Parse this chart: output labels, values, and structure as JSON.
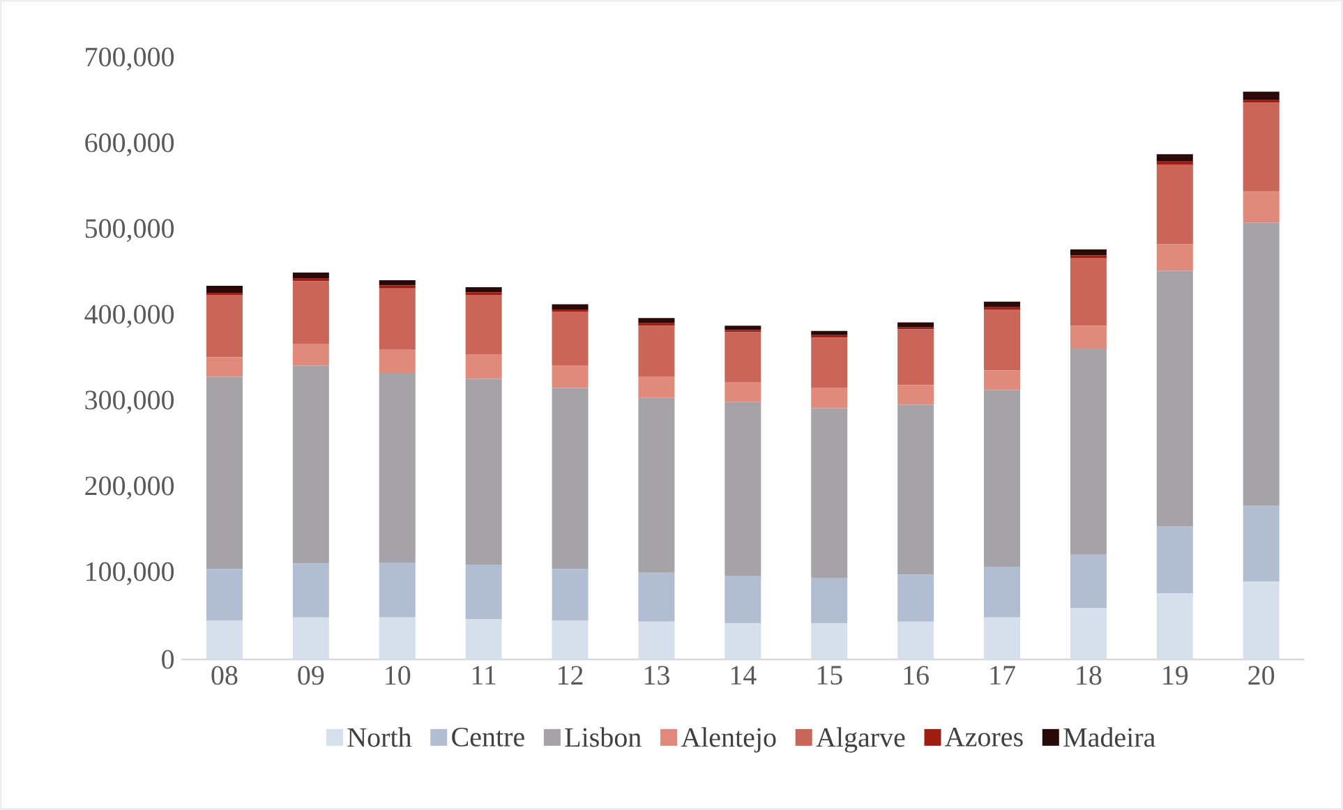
{
  "chart_data": {
    "type": "bar",
    "stacked": true,
    "categories": [
      "08",
      "09",
      "10",
      "11",
      "12",
      "13",
      "14",
      "15",
      "16",
      "17",
      "18",
      "19",
      "20"
    ],
    "series": [
      {
        "name": "North",
        "color": "#d6e0ec",
        "values": [
          45500,
          49000,
          49000,
          47000,
          45000,
          44000,
          42000,
          42000,
          44000,
          49000,
          60000,
          77000,
          90500
        ]
      },
      {
        "name": "Centre",
        "color": "#b1bdd0",
        "values": [
          60000,
          63000,
          64000,
          63500,
          60500,
          57000,
          55500,
          53000,
          55000,
          59000,
          62000,
          78000,
          88500
        ]
      },
      {
        "name": "Lisbon",
        "color": "#a5a2a8",
        "values": [
          224000,
          230500,
          221000,
          216500,
          211000,
          204000,
          202500,
          198000,
          198000,
          206000,
          240500,
          298000,
          330000
        ]
      },
      {
        "name": "Alentejo",
        "color": "#e08a7c",
        "values": [
          23000,
          25000,
          27000,
          29000,
          26500,
          25000,
          23500,
          24000,
          23000,
          23000,
          26500,
          31000,
          36500
        ]
      },
      {
        "name": "Algarve",
        "color": "#c96559",
        "values": [
          72500,
          73500,
          71500,
          69000,
          62500,
          59000,
          58000,
          58000,
          65000,
          71000,
          79000,
          93000,
          103500
        ]
      },
      {
        "name": "Azores",
        "color": "#9e1e14",
        "values": [
          2500,
          3000,
          3500,
          3000,
          2500,
          3000,
          2500,
          3000,
          2000,
          2500,
          3000,
          3500,
          3000
        ]
      },
      {
        "name": "Madeira",
        "color": "#2a0a08",
        "values": [
          8000,
          7000,
          6000,
          6000,
          6000,
          6000,
          5000,
          5000,
          6000,
          6500,
          7000,
          8500,
          10000
        ]
      }
    ],
    "ylim": [
      0,
      700000
    ],
    "yticks": [
      {
        "value": 0,
        "label": "0"
      },
      {
        "value": 100000,
        "label": "100,000"
      },
      {
        "value": 200000,
        "label": "200,000"
      },
      {
        "value": 300000,
        "label": "300,000"
      },
      {
        "value": 400000,
        "label": "400,000"
      },
      {
        "value": 500000,
        "label": "500,000"
      },
      {
        "value": 600000,
        "label": "600,000"
      },
      {
        "value": 700000,
        "label": "700,000"
      }
    ],
    "grid": false,
    "legend": "bottom"
  }
}
